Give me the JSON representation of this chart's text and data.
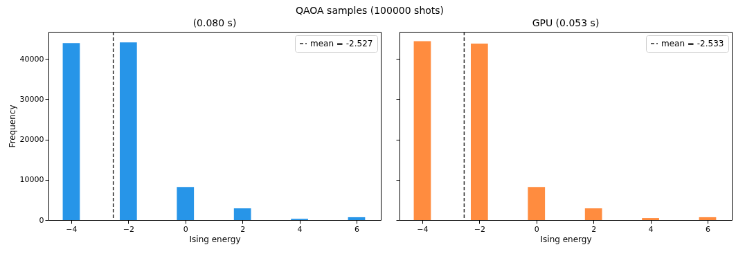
{
  "chart_data": [
    {
      "type": "histogram",
      "subtitle": "QAOA samples (100000 shots)",
      "title": "(0.080 s)",
      "xlabel": "Ising energy",
      "ylabel": "Frequency",
      "bins": [
        -4.3,
        -3.7,
        -2.3,
        -1.7,
        -0.3,
        0.3,
        1.7,
        2.3,
        3.7,
        4.3,
        5.7,
        6.3
      ],
      "values": [
        43900,
        0,
        44100,
        0,
        8200,
        0,
        2900,
        0,
        300,
        0,
        700
      ],
      "color": "#2795e8",
      "xlim": [
        -4.8,
        6.85
      ],
      "xticks": [
        -4,
        -2,
        0,
        2,
        4,
        6
      ],
      "ylim": [
        0,
        46700
      ],
      "yticks": [
        0,
        10000,
        20000,
        30000,
        40000
      ],
      "ref_lines": [
        {
          "axis": "x",
          "value": -2.527,
          "label": "mean = -2.527",
          "color": "#262626",
          "line_style": "dashed"
        }
      ],
      "legend": "top right",
      "grid": false
    },
    {
      "type": "histogram",
      "title": "GPU (0.053 s)",
      "xlabel": "Ising energy",
      "bins": [
        -4.3,
        -3.7,
        -2.3,
        -1.7,
        -0.3,
        0.3,
        1.7,
        2.3,
        3.7,
        4.3,
        5.7,
        6.3
      ],
      "values": [
        44400,
        0,
        43800,
        0,
        8200,
        0,
        2900,
        0,
        500,
        0,
        700
      ],
      "color": "#ff8c3f",
      "xlim": [
        -4.8,
        6.85
      ],
      "xticks": [
        -4,
        -2,
        0,
        2,
        4,
        6
      ],
      "ylim": [
        0,
        46700
      ],
      "yticks": [
        0,
        10000,
        20000,
        30000,
        40000
      ],
      "ref_lines": [
        {
          "axis": "x",
          "value": -2.533,
          "label": "mean = -2.533",
          "color": "#262626",
          "line_style": "dashed"
        }
      ],
      "legend": "top right",
      "grid": false,
      "tick_labels": "x"
    }
  ]
}
